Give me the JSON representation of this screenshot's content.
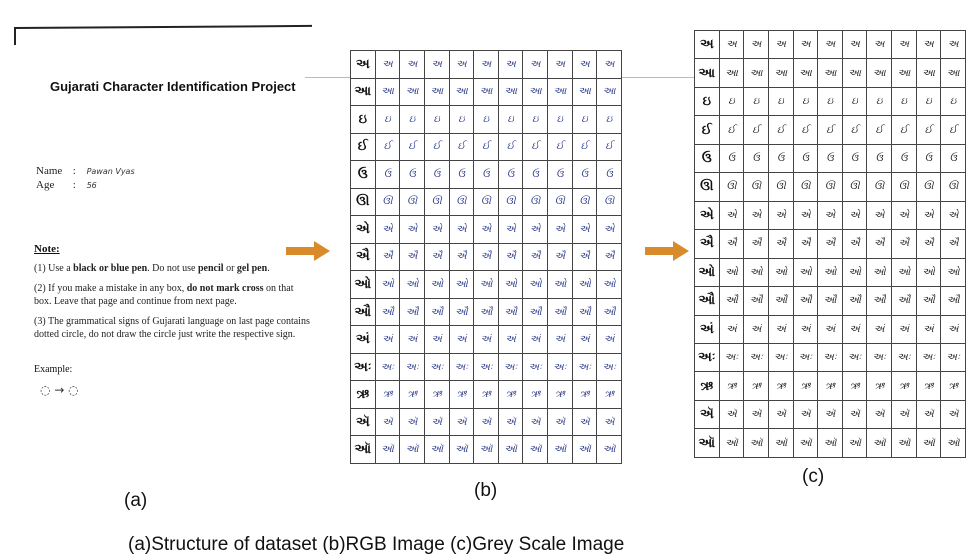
{
  "panel_a": {
    "title": "Gujarati Character Identification Project",
    "name_label": "Name",
    "name_value": "Pawan Vyas",
    "age_label": "Age",
    "age_value": "56",
    "colon": ":",
    "note_heading": "Note:",
    "note1_pre": "(1) Use a ",
    "note1_bold": "black or blue pen",
    "note1_mid": ". Do not use ",
    "note1_bold2": "pencil",
    "note1_or": " or ",
    "note1_bold3": "gel pen",
    "note1_end": ".",
    "note2_pre": "(2) If you make a mistake in any box, ",
    "note2_bold": "do not mark cross",
    "note2_end": " on that box. Leave that page and continue from next page.",
    "note3": "(3) The grammatical signs of Gujarati language on last page contains dotted circle, do not draw the circle just write the respective sign.",
    "example_label": "Example:",
    "example_symbol": "◌ → ◌"
  },
  "grid_rows": [
    {
      "label": "અ",
      "cell": "અ"
    },
    {
      "label": "આ",
      "cell": "આ"
    },
    {
      "label": "ઇ",
      "cell": "ઇ"
    },
    {
      "label": "ઈ",
      "cell": "ઈ"
    },
    {
      "label": "ઉ",
      "cell": "ઉ"
    },
    {
      "label": "ઊ",
      "cell": "ઊ"
    },
    {
      "label": "એ",
      "cell": "એ"
    },
    {
      "label": "ઐ",
      "cell": "ઐ"
    },
    {
      "label": "ઓ",
      "cell": "ઓ"
    },
    {
      "label": "ઔ",
      "cell": "ઔ"
    },
    {
      "label": "અં",
      "cell": "અં"
    },
    {
      "label": "અઃ",
      "cell": "અઃ"
    },
    {
      "label": "ઋ",
      "cell": "ઋ"
    },
    {
      "label": "ઍ",
      "cell": "ઍ"
    },
    {
      "label": "ઑ",
      "cell": "ઑ"
    }
  ],
  "grid_cols": 10,
  "captions": {
    "a": "(a)",
    "b": "(b)",
    "c": "(c)",
    "bottom": "(a)Structure of dataset   (b)RGB Image   (c)Grey Scale Image"
  },
  "colors": {
    "arrow": "#d98a2b",
    "ink_rgb": "#2b3a8a",
    "ink_grey": "#222222"
  }
}
